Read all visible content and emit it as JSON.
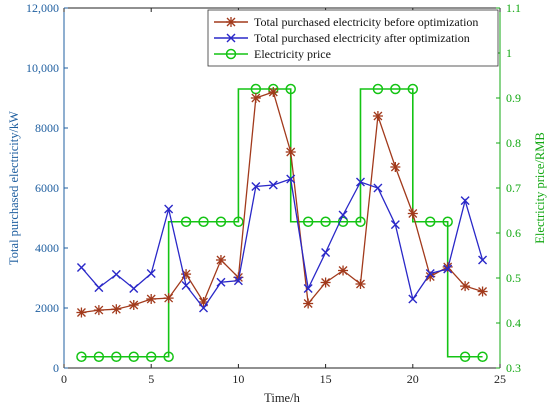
{
  "chart_data": {
    "type": "line",
    "x": [
      1,
      2,
      3,
      4,
      5,
      6,
      7,
      8,
      9,
      10,
      11,
      12,
      13,
      14,
      15,
      16,
      17,
      18,
      19,
      20,
      21,
      22,
      23,
      24
    ],
    "xlabel": "Time/h",
    "ylabel_left": "Total purchased electricity/kW",
    "ylabel_right": "Electricity price/RMB",
    "xlim": [
      0,
      25
    ],
    "ylim_left": [
      0,
      12000
    ],
    "ylim_right": [
      0.3,
      1.1
    ],
    "x_ticks": [
      "0",
      "5",
      "10",
      "15",
      "20",
      "25"
    ],
    "y_left_ticks": [
      "0",
      "2000",
      "4000",
      "6000",
      "8000",
      "10,000",
      "12,000"
    ],
    "y_right_ticks": [
      "0.3",
      "0.4",
      "0.5",
      "0.6",
      "0.7",
      "0.8",
      "0.9",
      "1",
      "1.1"
    ],
    "grid": false,
    "legend_position": "top-right",
    "series": [
      {
        "name": "Total purchased electricity before optimization",
        "axis": "left",
        "color": "#a23a1c",
        "marker": "asterisk",
        "values": [
          1850,
          1930,
          1960,
          2100,
          2300,
          2330,
          3130,
          2200,
          3600,
          3020,
          9000,
          9200,
          7200,
          2150,
          2850,
          3250,
          2800,
          8400,
          6700,
          5150,
          3050,
          3370,
          2730,
          2550
        ]
      },
      {
        "name": "Total purchased electricity after optimization",
        "axis": "left",
        "color": "#2a28c8",
        "marker": "x",
        "values": [
          3350,
          2680,
          3120,
          2650,
          3150,
          5300,
          2750,
          2000,
          2860,
          2910,
          6050,
          6100,
          6300,
          2650,
          3850,
          5100,
          6200,
          6000,
          4780,
          2300,
          3150,
          3300,
          5580,
          3600
        ]
      },
      {
        "name": "Electricity price",
        "axis": "right",
        "color": "#14c414",
        "marker": "circle",
        "values": [
          0.325,
          0.325,
          0.325,
          0.325,
          0.325,
          0.325,
          0.625,
          0.625,
          0.625,
          0.625,
          0.92,
          0.92,
          0.92,
          0.625,
          0.625,
          0.625,
          0.625,
          0.92,
          0.92,
          0.92,
          0.625,
          0.625,
          0.325,
          0.325
        ]
      }
    ]
  }
}
